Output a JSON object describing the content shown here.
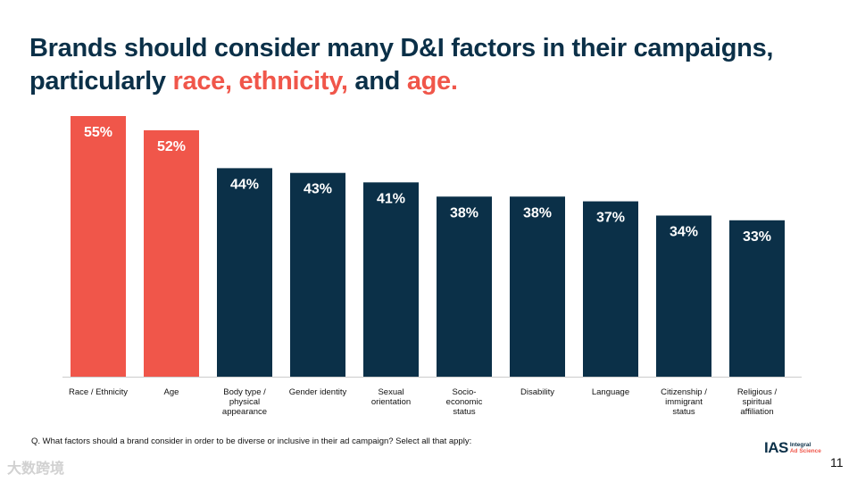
{
  "title": {
    "part1": "Brands should consider many D&I factors in their campaigns,",
    "part2": "particularly ",
    "highlight1": "race, ethnicity,",
    "part3": " and ",
    "highlight2": "age."
  },
  "chart_data": {
    "type": "bar",
    "categories": [
      "Race / Ethnicity",
      "Age",
      "Body type / physical appearance",
      "Gender identity",
      "Sexual orientation",
      "Socio-economic status",
      "Disability",
      "Language",
      "Citizenship / immigrant status",
      "Religious / spiritual affiliation"
    ],
    "category_lines": [
      [
        "Race / Ethnicity"
      ],
      [
        "Age"
      ],
      [
        "Body type /",
        "physical",
        "appearance"
      ],
      [
        "Gender identity"
      ],
      [
        "Sexual",
        "orientation"
      ],
      [
        "Socio-",
        "economic",
        "status"
      ],
      [
        "Disability"
      ],
      [
        "Language"
      ],
      [
        "Citizenship /",
        "immigrant",
        "status"
      ],
      [
        "Religious /",
        "spiritual",
        "affiliation"
      ]
    ],
    "values": [
      55,
      52,
      44,
      43,
      41,
      38,
      38,
      37,
      34,
      33
    ],
    "data_labels": [
      "55%",
      "52%",
      "44%",
      "43%",
      "41%",
      "38%",
      "38%",
      "37%",
      "34%",
      "33%"
    ],
    "highlighted": [
      true,
      true,
      false,
      false,
      false,
      false,
      false,
      false,
      false,
      false
    ],
    "colors": {
      "highlight": "#f0564a",
      "default": "#0b3048",
      "label": "#ffffff",
      "axis": "#cccccc"
    },
    "ylim": [
      0,
      55
    ],
    "grid": false,
    "legend": "none"
  },
  "footnote": "Q. What factors should a brand consider in order to be diverse or inclusive in their ad campaign? Select all that apply:",
  "logo": {
    "name": "IAS",
    "line1": "Integral",
    "line2": "Ad Science"
  },
  "page_number": "11",
  "watermark": "大数跨境"
}
